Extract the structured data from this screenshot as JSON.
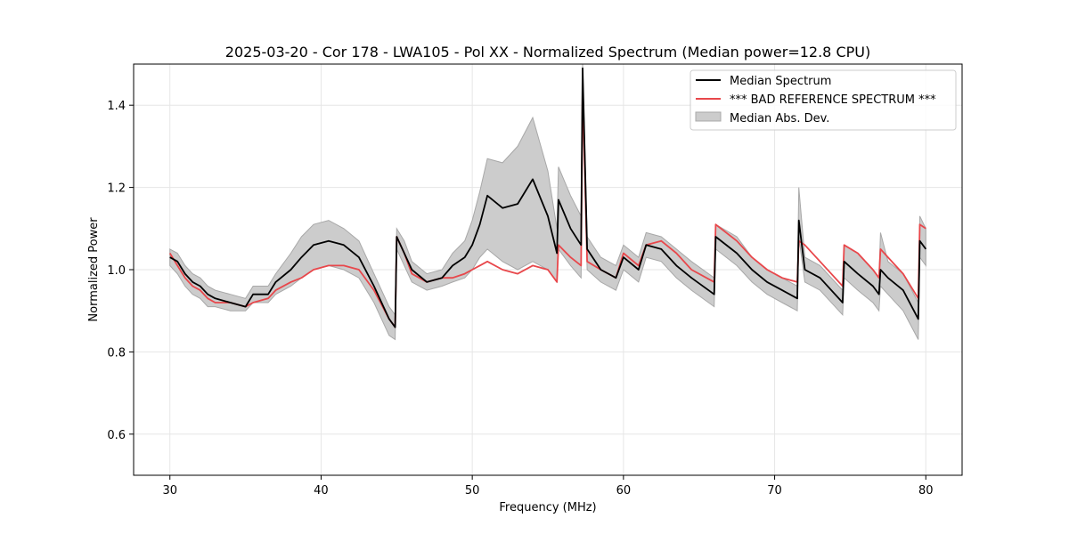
{
  "chart_data": {
    "type": "line",
    "title": "2025-03-20 - Cor 178 - LWA105 - Pol XX - Normalized Spectrum (Median power=12.8 CPU)",
    "xlabel": "Frequency (MHz)",
    "ylabel": "Normalized Power",
    "xlim": [
      27.6,
      82.4
    ],
    "ylim": [
      0.5,
      1.5
    ],
    "xticks": [
      30,
      40,
      50,
      60,
      70,
      80
    ],
    "yticks": [
      0.6,
      0.8,
      1.0,
      1.2,
      1.4
    ],
    "xtick_labels": [
      "30",
      "40",
      "50",
      "60",
      "70",
      "80"
    ],
    "ytick_labels": [
      "0.6",
      "0.8",
      "1.0",
      "1.2",
      "1.4"
    ],
    "grid": true,
    "legend_position": "top-right",
    "legend": [
      "Median Spectrum",
      "*** BAD REFERENCE SPECTRUM ***",
      "Median Abs. Dev."
    ],
    "colors": {
      "median": "#000000",
      "reference": "#e8474b",
      "mad_fill": "#cccccc",
      "mad_edge": "#a8a8a8",
      "grid": "#e6e6e6"
    },
    "x": [
      30.0,
      30.5,
      31.0,
      31.5,
      32.0,
      32.5,
      33.0,
      34.0,
      35.0,
      35.5,
      36.5,
      37.0,
      38.0,
      38.7,
      39.5,
      40.5,
      41.5,
      42.5,
      43.5,
      44.5,
      44.9,
      45.0,
      45.5,
      46.0,
      47.0,
      48.0,
      48.7,
      49.5,
      50.0,
      50.5,
      51.0,
      52.0,
      53.0,
      54.0,
      55.0,
      55.6,
      55.7,
      56.5,
      57.2,
      57.3,
      57.6,
      58.5,
      59.5,
      60.0,
      61.0,
      61.5,
      62.5,
      63.5,
      64.5,
      66.0,
      66.1,
      67.5,
      68.5,
      69.5,
      70.5,
      71.5,
      71.6,
      72.0,
      73.0,
      74.5,
      74.6,
      75.5,
      76.5,
      76.9,
      77.0,
      77.5,
      78.5,
      79.5,
      79.6,
      80.0
    ],
    "series": [
      {
        "name": "Median Spectrum",
        "values": [
          1.03,
          1.02,
          0.99,
          0.97,
          0.96,
          0.94,
          0.93,
          0.92,
          0.91,
          0.94,
          0.94,
          0.97,
          1.0,
          1.03,
          1.06,
          1.07,
          1.06,
          1.03,
          0.96,
          0.88,
          0.86,
          1.08,
          1.04,
          1.0,
          0.97,
          0.98,
          1.01,
          1.03,
          1.06,
          1.11,
          1.18,
          1.15,
          1.16,
          1.22,
          1.13,
          1.04,
          1.17,
          1.1,
          1.06,
          1.49,
          1.05,
          1.0,
          0.98,
          1.03,
          1.0,
          1.06,
          1.05,
          1.01,
          0.98,
          0.94,
          1.08,
          1.04,
          1.0,
          0.97,
          0.95,
          0.93,
          1.12,
          1.0,
          0.98,
          0.92,
          1.02,
          0.99,
          0.96,
          0.94,
          1.0,
          0.98,
          0.95,
          0.88,
          1.07,
          1.05
        ]
      },
      {
        "name": "*** BAD REFERENCE SPECTRUM ***",
        "values": [
          1.04,
          1.01,
          0.98,
          0.96,
          0.95,
          0.93,
          0.92,
          0.92,
          0.91,
          0.92,
          0.93,
          0.95,
          0.97,
          0.98,
          1.0,
          1.01,
          1.01,
          1.0,
          0.95,
          0.88,
          0.86,
          1.08,
          1.04,
          0.99,
          0.97,
          0.98,
          0.98,
          0.99,
          1.0,
          1.01,
          1.02,
          1.0,
          0.99,
          1.01,
          1.0,
          0.97,
          1.06,
          1.03,
          1.01,
          1.45,
          1.02,
          1.0,
          0.98,
          1.04,
          1.01,
          1.06,
          1.07,
          1.04,
          1.0,
          0.97,
          1.11,
          1.07,
          1.03,
          1.0,
          0.98,
          0.97,
          1.07,
          1.06,
          1.02,
          0.96,
          1.06,
          1.04,
          1.0,
          0.98,
          1.05,
          1.03,
          0.99,
          0.93,
          1.11,
          1.1
        ]
      },
      {
        "name": "Median Abs. Dev.",
        "lower": [
          1.01,
          0.99,
          0.96,
          0.94,
          0.93,
          0.91,
          0.91,
          0.9,
          0.9,
          0.92,
          0.92,
          0.94,
          0.96,
          0.98,
          1.0,
          1.01,
          1.0,
          0.98,
          0.92,
          0.84,
          0.83,
          1.05,
          1.01,
          0.97,
          0.95,
          0.96,
          0.97,
          0.98,
          1.0,
          1.03,
          1.05,
          1.02,
          1.0,
          1.02,
          1.0,
          0.97,
          1.05,
          1.01,
          0.98,
          1.4,
          1.0,
          0.97,
          0.95,
          1.0,
          0.97,
          1.03,
          1.02,
          0.98,
          0.95,
          0.91,
          1.05,
          1.01,
          0.97,
          0.94,
          0.92,
          0.9,
          1.08,
          0.97,
          0.95,
          0.89,
          0.98,
          0.95,
          0.92,
          0.9,
          0.96,
          0.94,
          0.9,
          0.83,
          1.03,
          1.01
        ],
        "upper": [
          1.05,
          1.04,
          1.01,
          0.99,
          0.98,
          0.96,
          0.95,
          0.94,
          0.93,
          0.96,
          0.96,
          0.99,
          1.04,
          1.08,
          1.11,
          1.12,
          1.1,
          1.07,
          0.99,
          0.91,
          0.89,
          1.1,
          1.07,
          1.02,
          0.99,
          1.0,
          1.04,
          1.07,
          1.12,
          1.19,
          1.27,
          1.26,
          1.3,
          1.37,
          1.24,
          1.1,
          1.25,
          1.18,
          1.13,
          1.5,
          1.08,
          1.03,
          1.01,
          1.06,
          1.03,
          1.09,
          1.08,
          1.05,
          1.02,
          0.98,
          1.11,
          1.08,
          1.03,
          1.0,
          0.98,
          0.96,
          1.2,
          1.03,
          1.01,
          0.95,
          1.06,
          1.04,
          1.0,
          0.98,
          1.09,
          1.02,
          0.99,
          0.92,
          1.13,
          1.1
        ]
      }
    ]
  }
}
